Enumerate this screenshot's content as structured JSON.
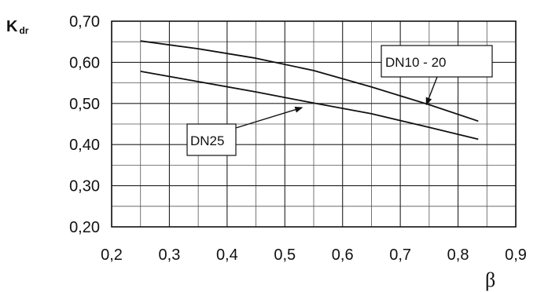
{
  "chart_data": {
    "type": "line",
    "title": "",
    "xlabel": "β",
    "ylabel": "K",
    "ylabel_subscript": "dr",
    "xlim": [
      0.2,
      0.9
    ],
    "ylim": [
      0.2,
      0.7
    ],
    "grid": true,
    "x_ticks": [
      "0,2",
      "0,3",
      "0,4",
      "0,5",
      "0,6",
      "0,7",
      "0,8",
      "0,9"
    ],
    "y_ticks": [
      "0,70",
      "0,60",
      "0,50",
      "0,40",
      "0,30",
      "0,20"
    ],
    "series": [
      {
        "name": "DN10 - 20",
        "x": [
          0.25,
          0.35,
          0.45,
          0.55,
          0.65,
          0.75,
          0.835
        ],
        "y": [
          0.652,
          0.633,
          0.61,
          0.58,
          0.54,
          0.497,
          0.457
        ]
      },
      {
        "name": "DN25",
        "x": [
          0.25,
          0.35,
          0.45,
          0.55,
          0.65,
          0.75,
          0.835
        ],
        "y": [
          0.578,
          0.553,
          0.528,
          0.501,
          0.475,
          0.442,
          0.413
        ]
      }
    ],
    "annotations": [
      {
        "text": "DN10 - 20",
        "arrow_to": {
          "x": 0.745,
          "y": 0.497
        }
      },
      {
        "text": "DN25",
        "arrow_to": {
          "x": 0.53,
          "y": 0.49
        }
      }
    ]
  }
}
